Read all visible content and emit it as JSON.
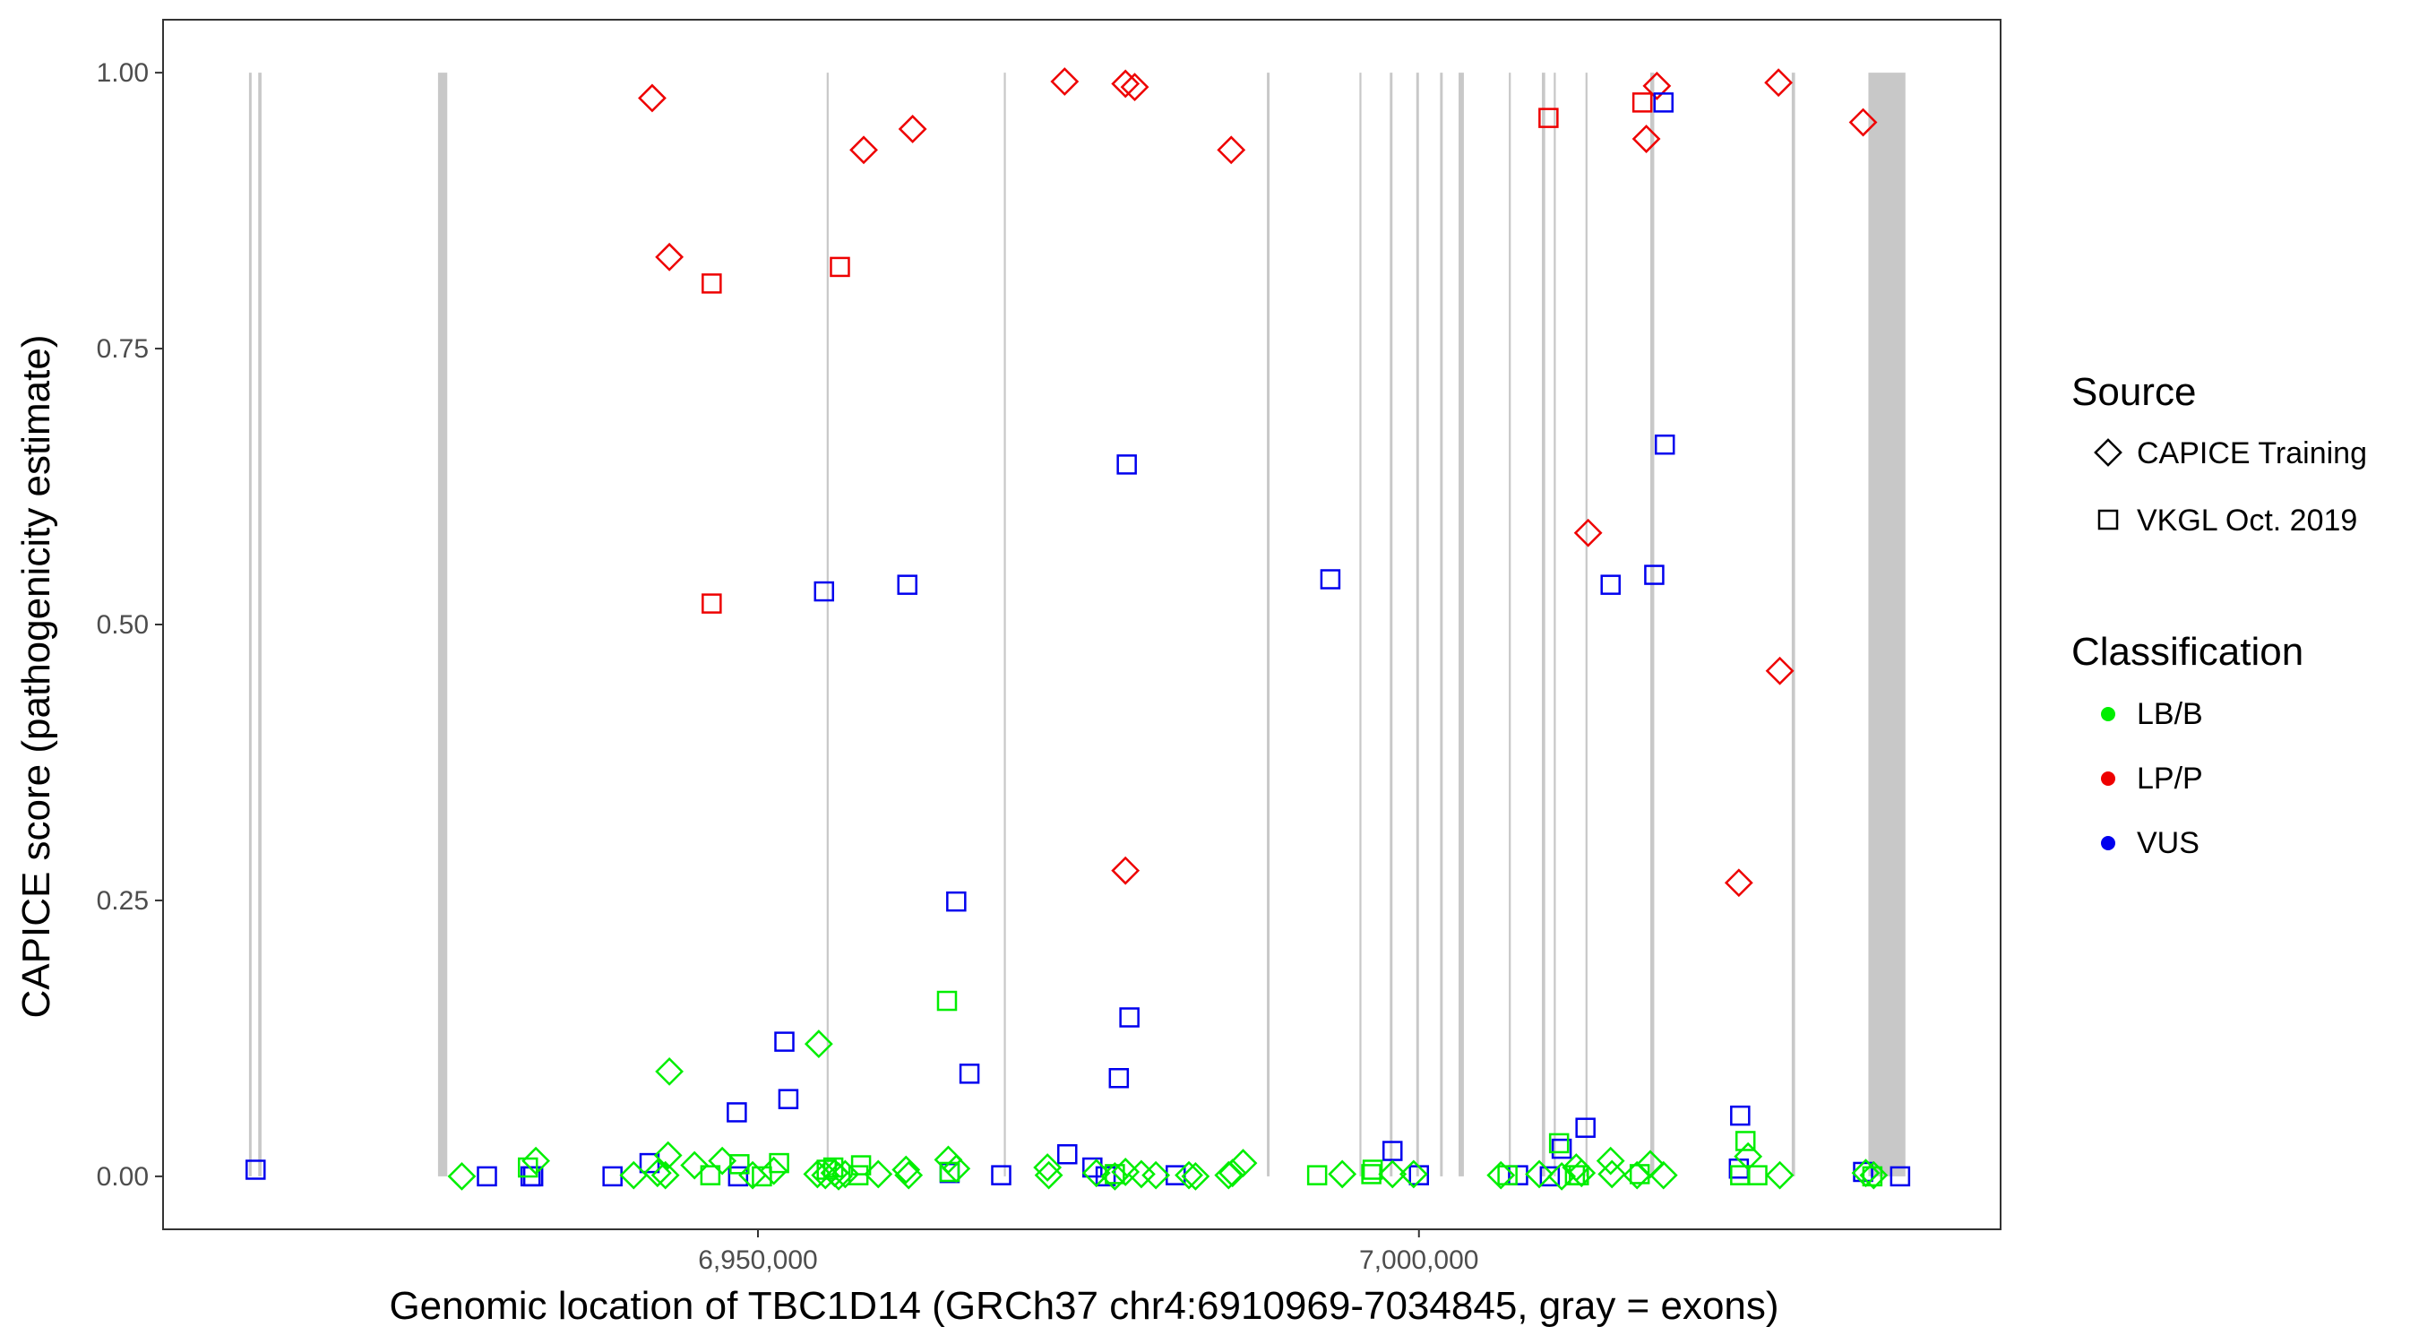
{
  "chart_data": {
    "type": "scatter",
    "title": "",
    "xlabel": "Genomic location of TBC1D14 (GRCh37 chr4:6910969-7034845, gray = exons)",
    "ylabel": "CAPICE score (pathogenicity estimate)",
    "xlim": [
      6905000,
      7044000
    ],
    "ylim": [
      -0.048,
      1.048
    ],
    "x_ticks": [
      6950000,
      7000000
    ],
    "x_tick_labels": [
      "6,950,000",
      "7,000,000"
    ],
    "y_ticks": [
      0,
      0.25,
      0.5,
      0.75,
      1.0
    ],
    "y_tick_labels": [
      "0.00",
      "0.25",
      "0.50",
      "0.75",
      "1.00"
    ],
    "grid": false,
    "legend_position": "right",
    "exons": [
      [
        6911500,
        6911700
      ],
      [
        6912200,
        6912450
      ],
      [
        6925800,
        6926500
      ],
      [
        6955200,
        6955350
      ],
      [
        6968600,
        6968750
      ],
      [
        6988500,
        6988700
      ],
      [
        6995500,
        6995650
      ],
      [
        6997800,
        6998000
      ],
      [
        6999800,
        7000000
      ],
      [
        7001600,
        7001800
      ],
      [
        7003000,
        7003400
      ],
      [
        7006800,
        7006950
      ],
      [
        7009300,
        7009550
      ],
      [
        7010200,
        7010350
      ],
      [
        7012600,
        7012750
      ],
      [
        7017500,
        7017800
      ],
      [
        7028200,
        7028450
      ],
      [
        7034000,
        7036800
      ]
    ],
    "legend": {
      "source": {
        "title": "Source",
        "entries": [
          {
            "label": "CAPICE Training",
            "shape": "diamond"
          },
          {
            "label": "VKGL Oct. 2019",
            "shape": "square"
          }
        ]
      },
      "classification": {
        "title": "Classification",
        "entries": [
          {
            "label": "LB/B",
            "color": "#00ee00"
          },
          {
            "label": "LP/P",
            "color": "#ee0000"
          },
          {
            "label": "VUS",
            "color": "#0000ee"
          }
        ]
      }
    },
    "colors": {
      "LB/B": "#00ee00",
      "LP/P": "#ee0000",
      "VUS": "#0000ee"
    },
    "series": [
      {
        "name": "LP/P",
        "source": "CAPICE Training",
        "points": [
          [
            6942000,
            0.977
          ],
          [
            6943300,
            0.833
          ],
          [
            6958000,
            0.93
          ],
          [
            6961700,
            0.949
          ],
          [
            6973200,
            0.992
          ],
          [
            6977800,
            0.99
          ],
          [
            6978500,
            0.987
          ],
          [
            6985800,
            0.93
          ],
          [
            7012800,
            0.583
          ],
          [
            7017200,
            0.94
          ],
          [
            7018000,
            0.988
          ],
          [
            7024200,
            0.266
          ],
          [
            7027200,
            0.991
          ],
          [
            7027300,
            0.458
          ],
          [
            7033600,
            0.955
          ],
          [
            6977800,
            0.277
          ]
        ]
      },
      {
        "name": "LP/P",
        "source": "VKGL Oct. 2019",
        "points": [
          [
            6946500,
            0.809
          ],
          [
            6956200,
            0.824
          ],
          [
            6946500,
            0.519
          ],
          [
            7009800,
            0.959
          ],
          [
            7016900,
            0.973
          ]
        ]
      },
      {
        "name": "VUS",
        "source": "VKGL Oct. 2019",
        "points": [
          [
            6912000,
            0.006
          ],
          [
            6929500,
            0.0
          ],
          [
            6932800,
            0.0
          ],
          [
            6933000,
            0.0
          ],
          [
            6939000,
            0.0
          ],
          [
            6941800,
            0.012
          ],
          [
            6948400,
            0.058
          ],
          [
            6948500,
            0.0
          ],
          [
            6952000,
            0.122
          ],
          [
            6952300,
            0.07
          ],
          [
            6955000,
            0.53
          ],
          [
            6961300,
            0.536
          ],
          [
            6964500,
            0.003
          ],
          [
            6965000,
            0.249
          ],
          [
            6966000,
            0.093
          ],
          [
            6968400,
            0.001
          ],
          [
            6973400,
            0.02
          ],
          [
            6975300,
            0.008
          ],
          [
            6976300,
            0.0
          ],
          [
            6977300,
            0.089
          ],
          [
            6977900,
            0.645
          ],
          [
            6978100,
            0.144
          ],
          [
            6981600,
            0.001
          ],
          [
            6993300,
            0.541
          ],
          [
            6998000,
            0.023
          ],
          [
            7000000,
            0.001
          ],
          [
            7007500,
            0.001
          ],
          [
            7009900,
            0.0
          ],
          [
            7010800,
            0.025
          ],
          [
            7012600,
            0.044
          ],
          [
            7014500,
            0.536
          ],
          [
            7017800,
            0.545
          ],
          [
            7018500,
            0.973
          ],
          [
            7018600,
            0.663
          ],
          [
            7024300,
            0.055
          ],
          [
            7024200,
            0.007
          ],
          [
            7033600,
            0.004
          ],
          [
            7036400,
            0.0
          ]
        ]
      },
      {
        "name": "LB/B",
        "source": "CAPICE Training",
        "points": [
          [
            6927600,
            0.0
          ],
          [
            6933200,
            0.014
          ],
          [
            6940600,
            0.001
          ],
          [
            6942400,
            0.003
          ],
          [
            6943000,
            0.001
          ],
          [
            6943200,
            0.019
          ],
          [
            6943300,
            0.095
          ],
          [
            6945200,
            0.01
          ],
          [
            6947300,
            0.014
          ],
          [
            6949600,
            0.001
          ],
          [
            6951200,
            0.005
          ],
          [
            6954500,
            0.002
          ],
          [
            6954600,
            0.12
          ],
          [
            6955100,
            0.001
          ],
          [
            6955800,
            0.003
          ],
          [
            6956100,
            0.0
          ],
          [
            6956600,
            0.002
          ],
          [
            6959100,
            0.002
          ],
          [
            6961200,
            0.006
          ],
          [
            6961400,
            0.001
          ],
          [
            6964400,
            0.015
          ],
          [
            6965000,
            0.007
          ],
          [
            6971900,
            0.008
          ],
          [
            6972000,
            0.001
          ],
          [
            6975600,
            0.003
          ],
          [
            6977000,
            0.0
          ],
          [
            6977800,
            0.004
          ],
          [
            6979000,
            0.002
          ],
          [
            6980100,
            0.001
          ],
          [
            6982600,
            0.001
          ],
          [
            6983100,
            0.0
          ],
          [
            6985600,
            0.001
          ],
          [
            6985900,
            0.003
          ],
          [
            6986700,
            0.012
          ],
          [
            6994200,
            0.002
          ],
          [
            6998000,
            0.002
          ],
          [
            6999600,
            0.002
          ],
          [
            7006200,
            0.001
          ],
          [
            7009100,
            0.002
          ],
          [
            7010800,
            0.0
          ],
          [
            7011900,
            0.008
          ],
          [
            7012300,
            0.003
          ],
          [
            7014500,
            0.014
          ],
          [
            7014600,
            0.002
          ],
          [
            7016500,
            0.001
          ],
          [
            7017500,
            0.011
          ],
          [
            7018500,
            0.001
          ],
          [
            7024900,
            0.018
          ],
          [
            7027300,
            0.001
          ],
          [
            7033800,
            0.003
          ],
          [
            7034400,
            0.001
          ]
        ]
      },
      {
        "name": "LB/B",
        "source": "VKGL Oct. 2019",
        "points": [
          [
            6932600,
            0.008
          ],
          [
            6946400,
            0.001
          ],
          [
            6948600,
            0.011
          ],
          [
            6950300,
            0.0
          ],
          [
            6951600,
            0.012
          ],
          [
            6955200,
            0.006
          ],
          [
            6955700,
            0.008
          ],
          [
            6957600,
            0.001
          ],
          [
            6957800,
            0.01
          ],
          [
            6964300,
            0.159
          ],
          [
            6964500,
            0.004
          ],
          [
            6977000,
            0.002
          ],
          [
            6992300,
            0.001
          ],
          [
            6996400,
            0.002
          ],
          [
            6996500,
            0.006
          ],
          [
            7006700,
            0.001
          ],
          [
            7010600,
            0.03
          ],
          [
            7011800,
            0.001
          ],
          [
            7012100,
            0.001
          ],
          [
            7016700,
            0.002
          ],
          [
            7024300,
            0.001
          ],
          [
            7024700,
            0.032
          ],
          [
            7025600,
            0.001
          ],
          [
            7034300,
            0.0
          ]
        ]
      }
    ]
  }
}
